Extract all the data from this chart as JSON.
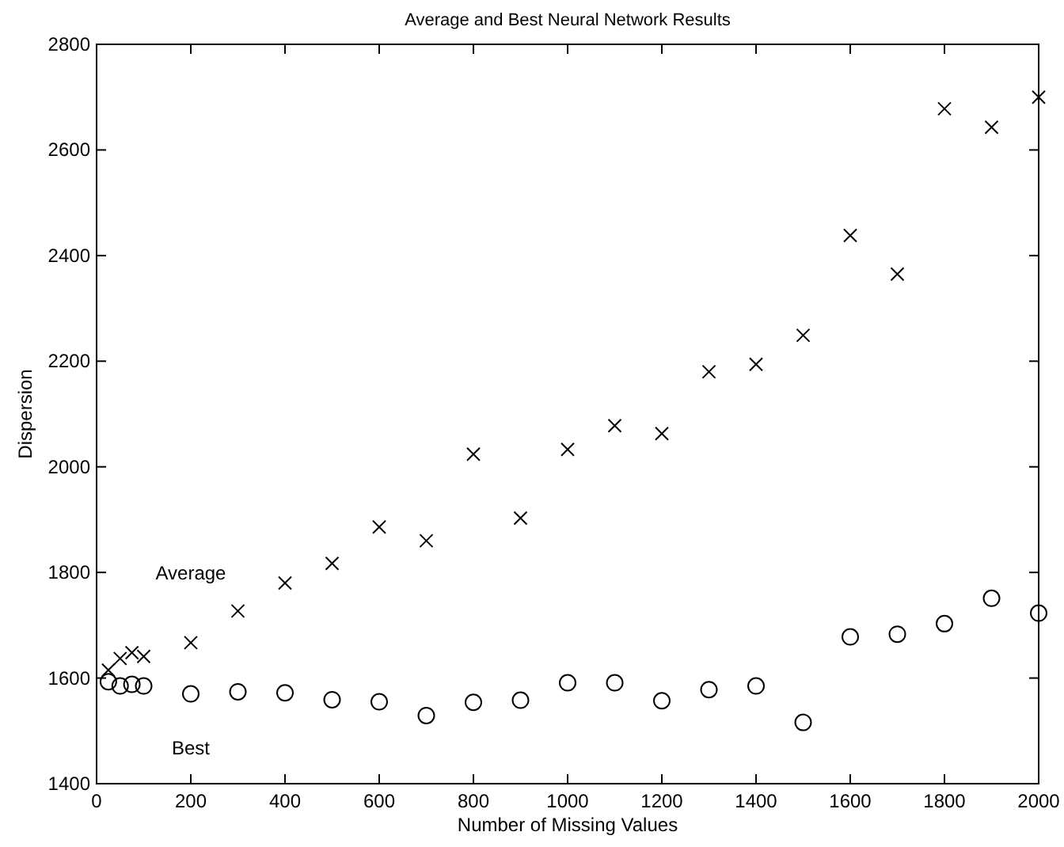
{
  "chart_data": {
    "type": "scatter",
    "title": "Average and Best Neural Network Results",
    "xlabel": "Number of Missing Values",
    "ylabel": "Dispersion",
    "x": [
      25,
      50,
      75,
      100,
      200,
      300,
      400,
      500,
      600,
      700,
      800,
      900,
      1000,
      1100,
      1200,
      1300,
      1400,
      1500,
      1600,
      1700,
      1800,
      1900,
      2000
    ],
    "xlim": [
      0,
      2000
    ],
    "xticks": [
      0,
      200,
      400,
      600,
      800,
      1000,
      1200,
      1400,
      1600,
      1800,
      2000
    ],
    "ylim": [
      1400,
      2800
    ],
    "yticks": [
      1400,
      1600,
      1800,
      2000,
      2200,
      2400,
      2600,
      2800
    ],
    "grid": false,
    "legend": false,
    "series": [
      {
        "name": "Average",
        "color": "#000000",
        "marker": "cross",
        "values": [
          1615,
          1637,
          1648,
          1641,
          1667,
          1727,
          1780,
          1817,
          1886,
          1860,
          2024,
          1903,
          2033,
          2078,
          2063,
          2180,
          2194,
          2249,
          2438,
          2365,
          2678,
          2643,
          2700
        ]
      },
      {
        "name": "Best",
        "color": "#000000",
        "marker": "circle",
        "values": [
          1593,
          1585,
          1588,
          1585,
          1570,
          1574,
          1572,
          1559,
          1555,
          1529,
          1554,
          1558,
          1591,
          1591,
          1557,
          1578,
          1585,
          1516,
          1678,
          1683,
          1703,
          1751,
          1723
        ]
      }
    ]
  }
}
